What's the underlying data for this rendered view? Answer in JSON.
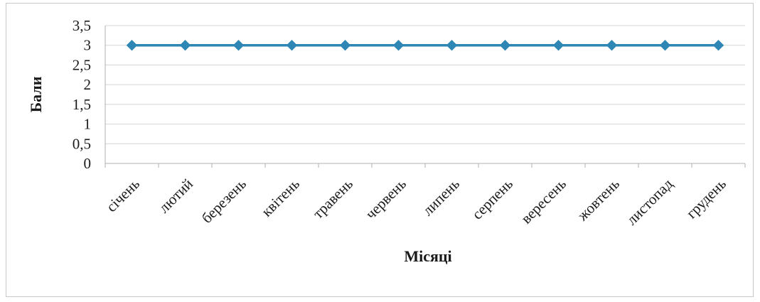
{
  "chart_data": {
    "type": "line",
    "title": "",
    "xlabel": "Місяці",
    "ylabel": "Бали",
    "categories": [
      "січень",
      "лютий",
      "березень",
      "квітень",
      "травень",
      "червень",
      "липень",
      "серпень",
      "вересень",
      "жовтень",
      "листопад",
      "грудень"
    ],
    "series": [
      {
        "values": [
          3,
          3,
          3,
          3,
          3,
          3,
          3,
          3,
          3,
          3,
          3,
          3
        ],
        "color": "#2e86b5",
        "marker": "diamond"
      }
    ],
    "yticks": [
      "0",
      "0,5",
      "1",
      "1,5",
      "2",
      "2,5",
      "3",
      "3,5"
    ],
    "ylim": [
      0,
      3.5
    ],
    "grid": true,
    "legend": "none"
  }
}
